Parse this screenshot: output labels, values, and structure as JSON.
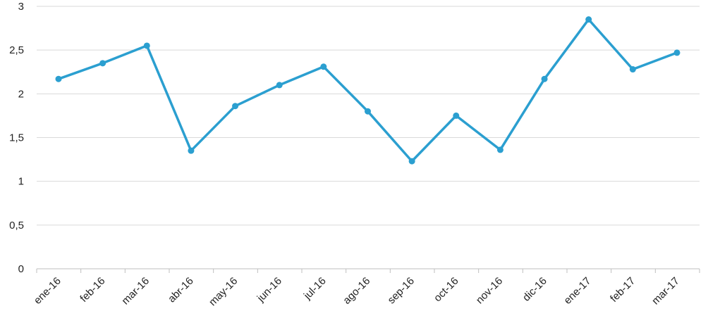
{
  "chart_data": {
    "type": "line",
    "title": "",
    "xlabel": "",
    "ylabel": "",
    "categories": [
      "ene-16",
      "feb-16",
      "mar-16",
      "abr-16",
      "may-16",
      "jun-16",
      "jul-16",
      "ago-16",
      "sep-16",
      "oct-16",
      "nov-16",
      "dic-16",
      "ene-17",
      "feb-17",
      "mar-17"
    ],
    "series": [
      {
        "values": [
          2.17,
          2.35,
          2.55,
          1.35,
          1.86,
          2.1,
          2.31,
          1.8,
          1.23,
          1.75,
          1.36,
          2.17,
          2.85,
          2.28,
          2.47
        ]
      }
    ],
    "ylim": [
      0,
      3
    ],
    "yticks": [
      "0",
      "0,5",
      "1",
      "1,5",
      "2",
      "2,5",
      "3"
    ],
    "ytick_values": [
      0,
      0.5,
      1,
      1.5,
      2,
      2.5,
      3
    ],
    "grid": true,
    "legend": "none",
    "colors": {
      "line": "#2b9fd0",
      "grid": "#d9d9d9",
      "axis": "#bfbfbf",
      "text": "#222222"
    }
  }
}
